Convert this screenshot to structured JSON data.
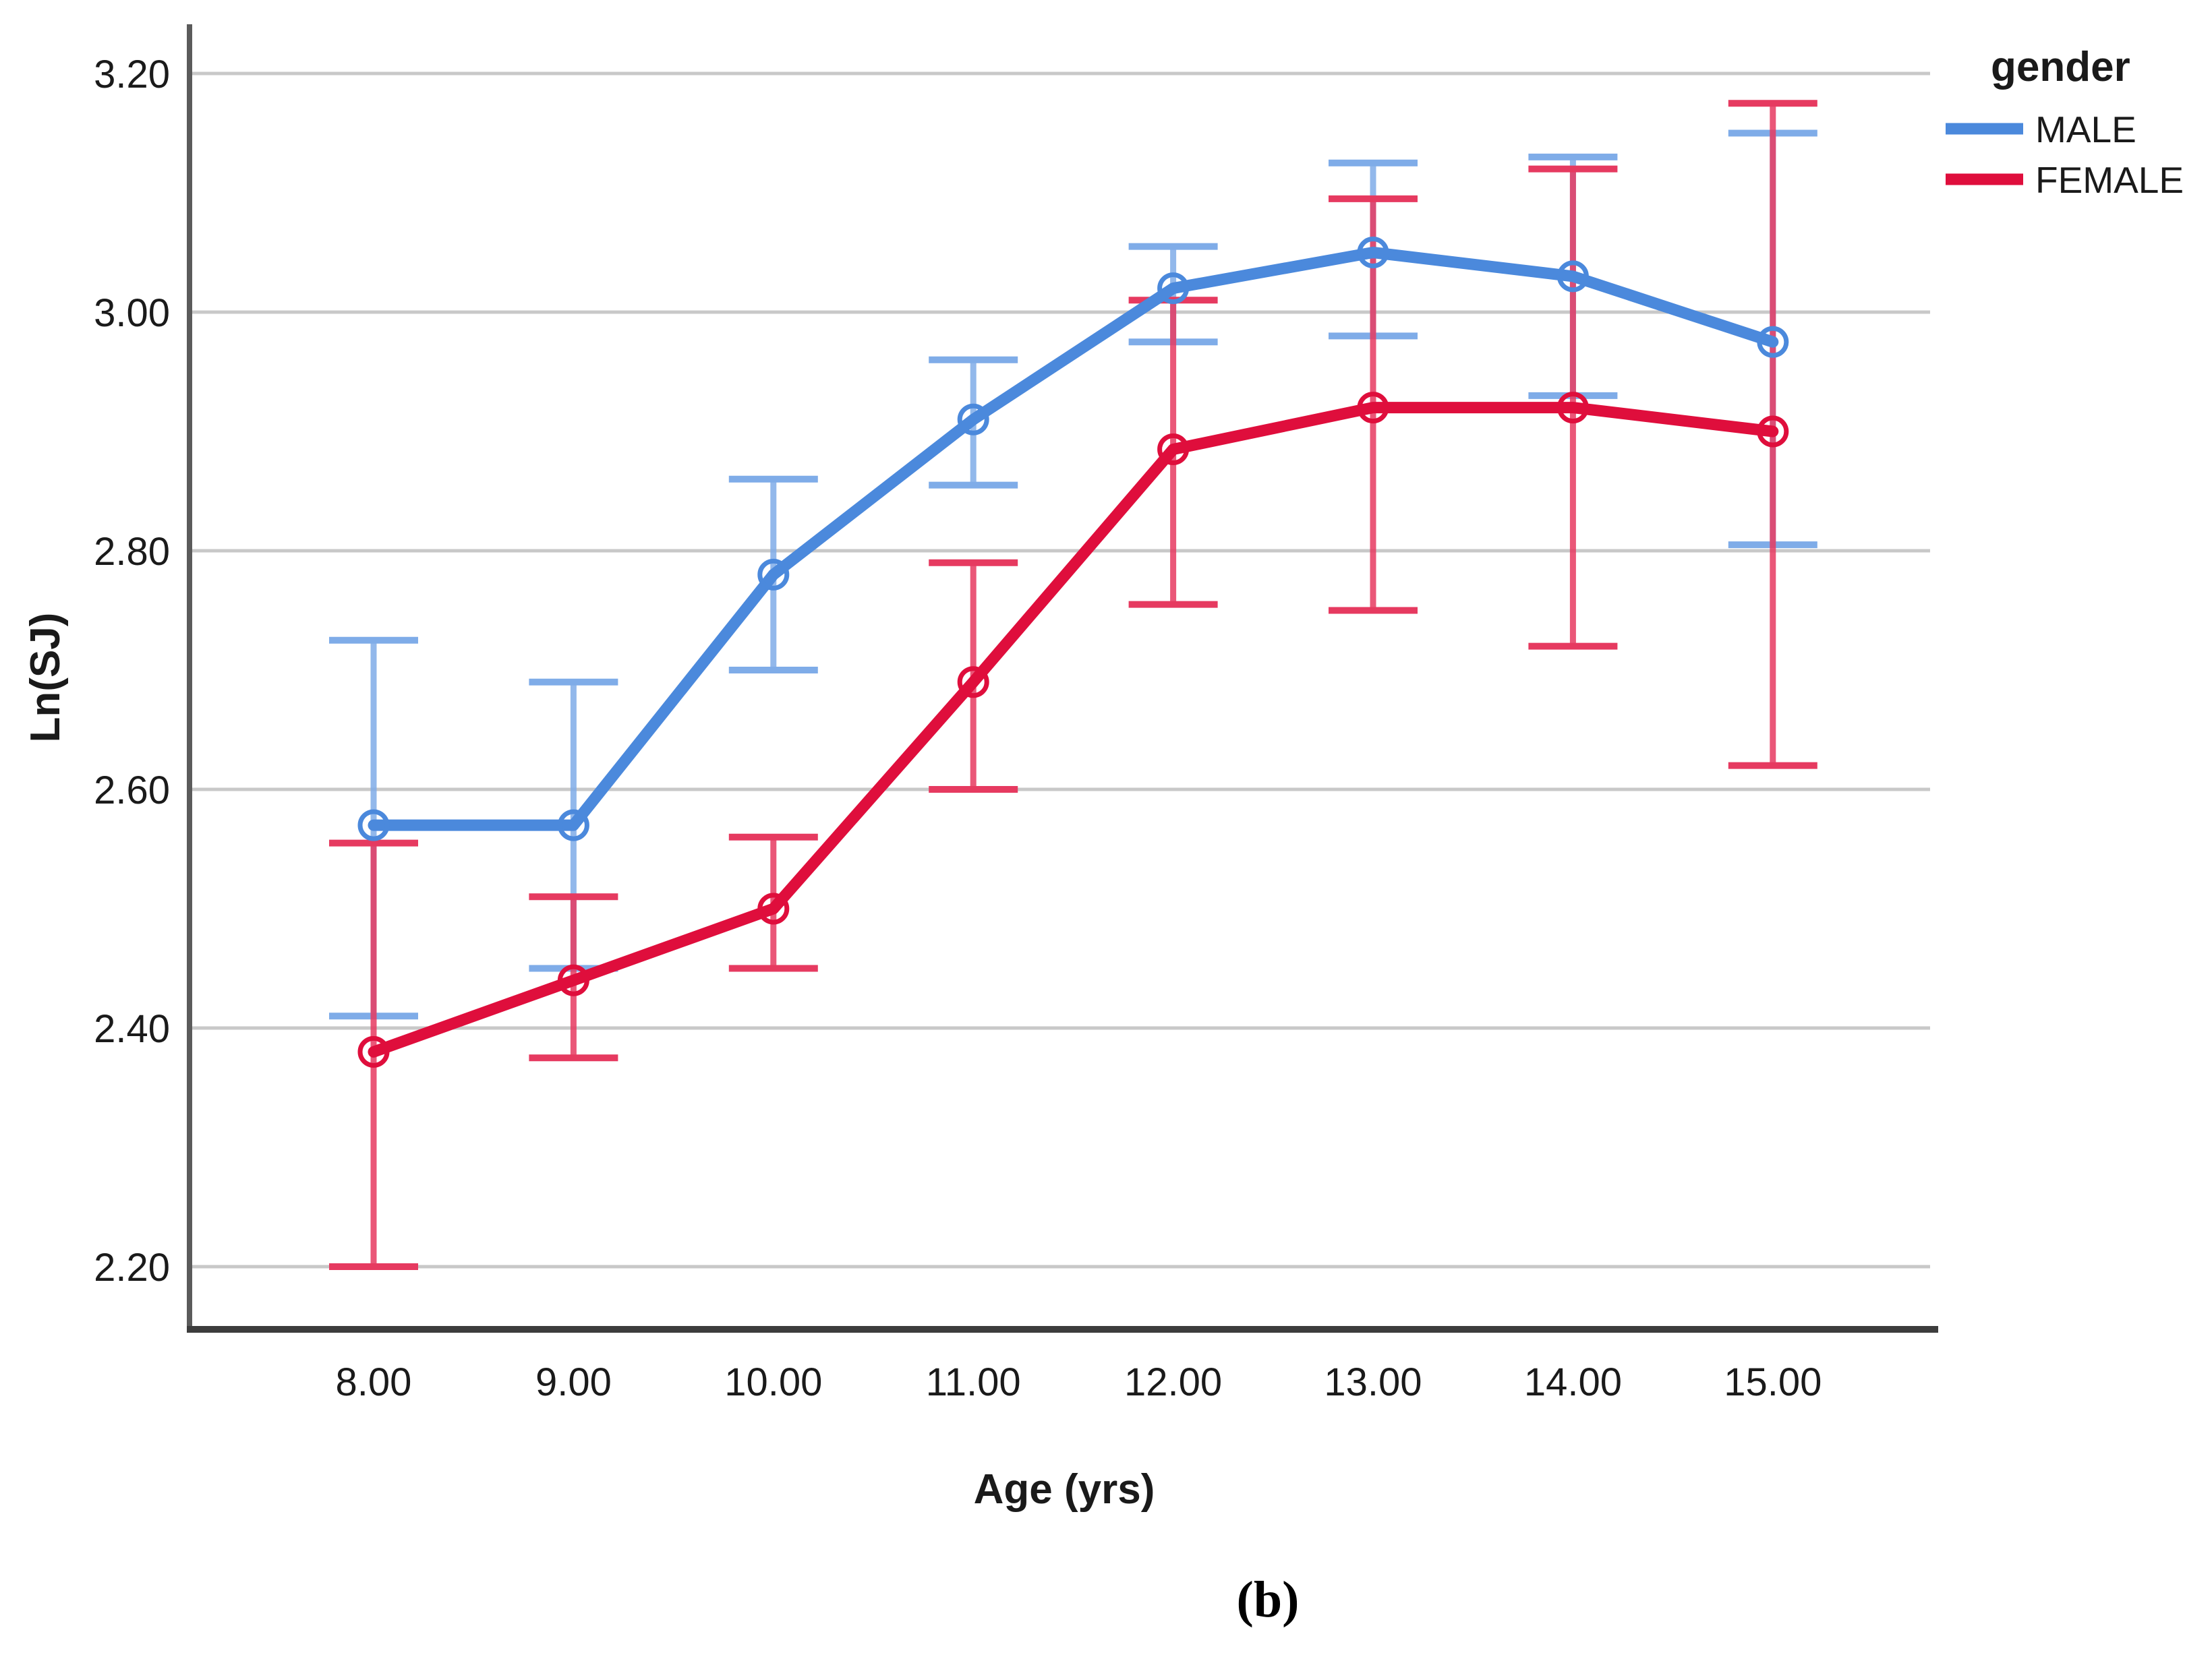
{
  "figure": {
    "caption": "(b)"
  },
  "legend": {
    "title": "gender",
    "entries": [
      {
        "label": "MALE",
        "color": "#4B89DC"
      },
      {
        "label": "FEMALE",
        "color": "#DF0E3C"
      }
    ]
  },
  "chart_data": {
    "type": "line",
    "title": "",
    "xlabel": "Age (yrs)",
    "ylabel": "Ln(SJ)",
    "x": [
      8,
      9,
      10,
      11,
      12,
      13,
      14,
      15
    ],
    "x_tick_labels": [
      "8.00",
      "9.00",
      "10.00",
      "11.00",
      "12.00",
      "13.00",
      "14.00",
      "15.00"
    ],
    "y_ticks": [
      3.2,
      3.0,
      2.8,
      2.6,
      2.4,
      2.2
    ],
    "y_tick_labels": [
      "3.20",
      "3.00",
      "2.80",
      "2.60",
      "2.40",
      "2.20"
    ],
    "ylim": [
      2.145,
      3.24
    ],
    "xlim": [
      7.1,
      15.8
    ],
    "grid": "horizontal-only",
    "legend_position": "top-right-outside",
    "error_bars": "95% CI, capped",
    "series": [
      {
        "name": "MALE",
        "color": "#4B89DC",
        "error_color": "#7FACE8",
        "means": [
          2.57,
          2.57,
          2.78,
          2.91,
          3.02,
          3.05,
          3.03,
          2.975
        ],
        "ci_low": [
          2.41,
          2.45,
          2.7,
          2.855,
          2.975,
          2.98,
          2.93,
          2.805
        ],
        "ci_high": [
          2.725,
          2.69,
          2.86,
          2.96,
          3.055,
          3.125,
          3.13,
          3.15
        ]
      },
      {
        "name": "FEMALE",
        "color": "#DF0E3C",
        "error_color": "#E63A60",
        "means": [
          2.38,
          2.44,
          2.5,
          2.69,
          2.885,
          2.92,
          2.92,
          2.9
        ],
        "ci_low": [
          2.2,
          2.375,
          2.45,
          2.6,
          2.755,
          2.75,
          2.72,
          2.62
        ],
        "ci_high": [
          2.555,
          2.51,
          2.56,
          2.79,
          3.01,
          3.095,
          3.12,
          3.175
        ]
      }
    ]
  }
}
